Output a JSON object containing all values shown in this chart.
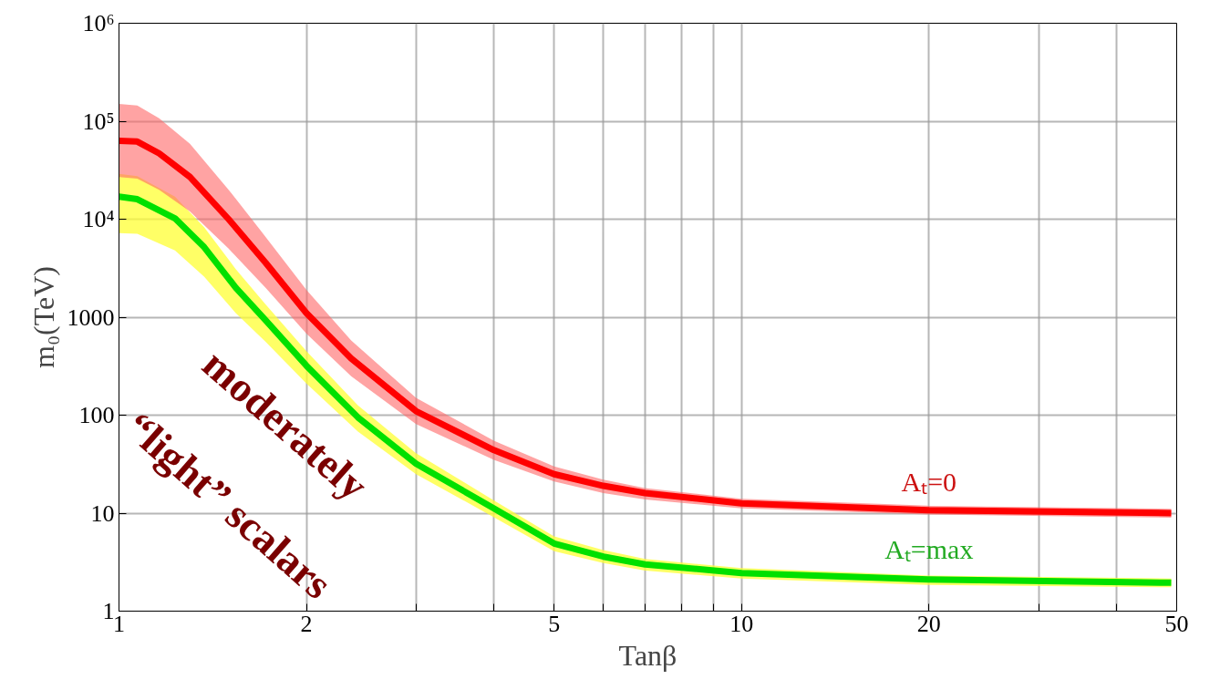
{
  "chart_data": {
    "type": "line",
    "xlabel": "Tanβ",
    "ylabel": "m₀(TeV)",
    "log": "xy",
    "grid": true,
    "marker": "none",
    "line_style": "solid",
    "xlim": [
      1,
      50
    ],
    "ylim": [
      1,
      1000000
    ],
    "xticks": [
      1,
      2,
      {
        "value": 3,
        "label": null
      },
      {
        "value": 4,
        "label": null
      },
      5,
      {
        "value": 6,
        "label": null
      },
      {
        "value": 7,
        "label": null
      },
      {
        "value": 8,
        "label": null
      },
      {
        "value": 9,
        "label": null
      },
      10,
      20,
      {
        "value": 30,
        "label": null
      },
      {
        "value": 40,
        "label": null
      },
      50
    ],
    "yticks": [
      1,
      10,
      100,
      1000,
      {
        "value": 10000,
        "label": "10⁴"
      },
      {
        "value": 100000,
        "label": "10⁵"
      },
      {
        "value": 1000000,
        "label": "10⁶"
      }
    ],
    "series": [
      {
        "color": "#00e000",
        "x": [
          1,
          1.07,
          1.23,
          1.37,
          1.54,
          1.72,
          2,
          2.42,
          3,
          4,
          5,
          6,
          7,
          10,
          20,
          49
        ],
        "values": [
          17000,
          16000,
          10200,
          5200,
          2000,
          930,
          320,
          95,
          32,
          11.2,
          4.9,
          3.6,
          3.0,
          2.45,
          2.1,
          1.95
        ],
        "upper": [
          29000,
          27500,
          17000,
          8300,
          3100,
          1350,
          450,
          126,
          41,
          13.5,
          5.8,
          4.2,
          3.4,
          2.75,
          2.3,
          2.15
        ],
        "lower": [
          7200,
          7100,
          4800,
          2600,
          1100,
          560,
          210,
          68,
          25,
          9.1,
          4.1,
          3.1,
          2.6,
          2.15,
          1.85,
          1.75
        ]
      },
      {
        "color": "#ff0000",
        "x": [
          1,
          1.07,
          1.16,
          1.3,
          1.5,
          1.72,
          2,
          2.36,
          3,
          4,
          5,
          6,
          7,
          10,
          20,
          49
        ],
        "values": [
          63000,
          62000,
          47000,
          27000,
          10000,
          3600,
          1100,
          380,
          110,
          44,
          25,
          19,
          16,
          12.6,
          10.7,
          10
        ],
        "upper": [
          150000,
          145000,
          107000,
          59000,
          20000,
          6600,
          1900,
          580,
          150,
          55,
          30,
          22,
          18,
          14,
          11.9,
          11.1
        ],
        "lower": [
          27000,
          26000,
          20000,
          12000,
          5000,
          2000,
          680,
          250,
          81,
          35,
          21,
          16,
          13.8,
          11.2,
          9.7,
          9.0
        ]
      }
    ],
    "annotations": [
      "Aₜ=0",
      "Aₜ=max",
      "moderately",
      "“light” scalars"
    ]
  }
}
